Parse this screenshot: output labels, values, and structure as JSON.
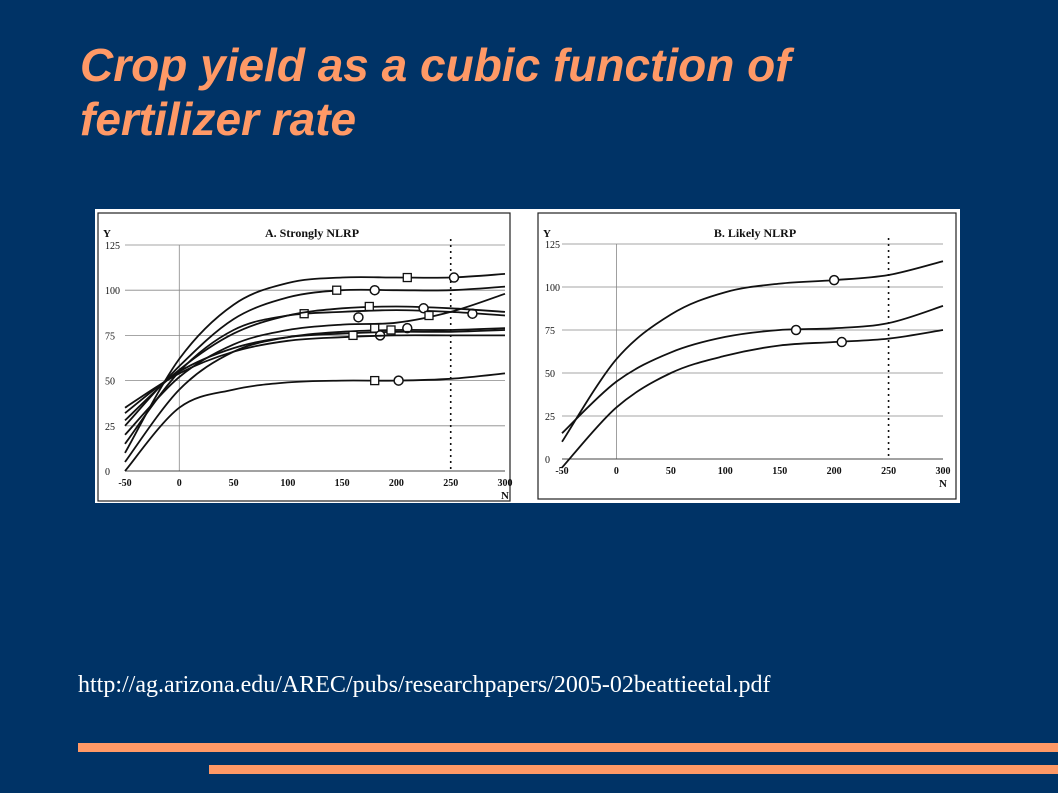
{
  "slide": {
    "title": "Crop yield as a cubic function of fertilizer rate",
    "source_url": "http://ag.arizona.edu/AREC/pubs/researchpapers/2005-02beattieetal.pdf",
    "background_color": "#003366",
    "accent_color": "#ff9966"
  },
  "chart_data": [
    {
      "type": "line",
      "title": "A. Strongly NLRP",
      "xlabel": "N",
      "ylabel": "Y",
      "xlim": [
        -50,
        300
      ],
      "ylim": [
        0,
        125
      ],
      "x_ticks": [
        "-50",
        "0",
        "50",
        "100",
        "150",
        "200",
        "250",
        "300"
      ],
      "y_ticks": [
        "0",
        "25",
        "50",
        "75",
        "100",
        "125"
      ],
      "grid": true,
      "reference_line_x": 250,
      "x": [
        -50,
        0,
        50,
        100,
        150,
        200,
        250,
        300
      ],
      "series": [
        {
          "values": [
            10,
            62,
            92,
            104,
            107,
            107,
            107,
            109
          ],
          "markers": [
            {
              "x": 210,
              "y": 107,
              "shape": "square"
            },
            {
              "x": 253,
              "y": 107,
              "shape": "circle"
            }
          ]
        },
        {
          "values": [
            25,
            58,
            84,
            96,
            100,
            100,
            100,
            102
          ],
          "markers": [
            {
              "x": 145,
              "y": 100,
              "shape": "square"
            },
            {
              "x": 180,
              "y": 100,
              "shape": "circle"
            }
          ]
        },
        {
          "values": [
            15,
            55,
            78,
            86,
            88,
            89,
            88,
            86
          ],
          "markers": [
            {
              "x": 115,
              "y": 87,
              "shape": "square"
            },
            {
              "x": 270,
              "y": 87,
              "shape": "circle"
            }
          ]
        },
        {
          "values": [
            28,
            56,
            76,
            86,
            90,
            91,
            90,
            88
          ],
          "markers": [
            {
              "x": 175,
              "y": 91,
              "shape": "square"
            },
            {
              "x": 225,
              "y": 90,
              "shape": "circle"
            }
          ]
        },
        {
          "values": [
            20,
            52,
            70,
            78,
            81,
            82,
            88,
            98
          ],
          "markers": [
            {
              "x": 230,
              "y": 86,
              "shape": "square"
            },
            {
              "x": 165,
              "y": 85,
              "shape": "circle"
            }
          ]
        },
        {
          "values": [
            5,
            45,
            66,
            74,
            77,
            78,
            78,
            79
          ],
          "markers": [
            {
              "x": 180,
              "y": 79,
              "shape": "square"
            },
            {
              "x": 210,
              "y": 79,
              "shape": "circle"
            }
          ]
        },
        {
          "values": [
            32,
            55,
            68,
            74,
            76,
            77,
            77,
            78
          ],
          "markers": [
            {
              "x": 195,
              "y": 78,
              "shape": "square"
            },
            {
              "x": 185,
              "y": 75,
              "shape": "circle"
            }
          ]
        },
        {
          "values": [
            35,
            54,
            66,
            72,
            74,
            75,
            75,
            75
          ],
          "markers": [
            {
              "x": 160,
              "y": 75,
              "shape": "square"
            }
          ]
        },
        {
          "values": [
            0,
            35,
            45,
            49,
            50,
            50,
            51,
            54
          ],
          "markers": [
            {
              "x": 180,
              "y": 50,
              "shape": "square"
            },
            {
              "x": 202,
              "y": 50,
              "shape": "circle"
            }
          ]
        }
      ]
    },
    {
      "type": "line",
      "title": "B. Likely NLRP",
      "xlabel": "N",
      "ylabel": "Y",
      "xlim": [
        -50,
        300
      ],
      "ylim": [
        0,
        125
      ],
      "x_ticks": [
        "-50",
        "0",
        "50",
        "100",
        "150",
        "200",
        "250",
        "300"
      ],
      "y_ticks": [
        "0",
        "25",
        "50",
        "75",
        "100",
        "125"
      ],
      "grid": true,
      "reference_line_x": 250,
      "x": [
        -50,
        0,
        50,
        100,
        150,
        200,
        250,
        300
      ],
      "series": [
        {
          "values": [
            10,
            58,
            84,
            97,
            102,
            104,
            107,
            115
          ],
          "markers": [
            {
              "x": 200,
              "y": 104,
              "shape": "circle"
            }
          ]
        },
        {
          "values": [
            15,
            45,
            62,
            71,
            75,
            76,
            79,
            89
          ],
          "markers": [
            {
              "x": 165,
              "y": 75,
              "shape": "circle"
            }
          ]
        },
        {
          "values": [
            -5,
            30,
            50,
            60,
            66,
            68,
            70,
            75
          ],
          "markers": [
            {
              "x": 207,
              "y": 68,
              "shape": "circle"
            }
          ]
        }
      ]
    }
  ]
}
